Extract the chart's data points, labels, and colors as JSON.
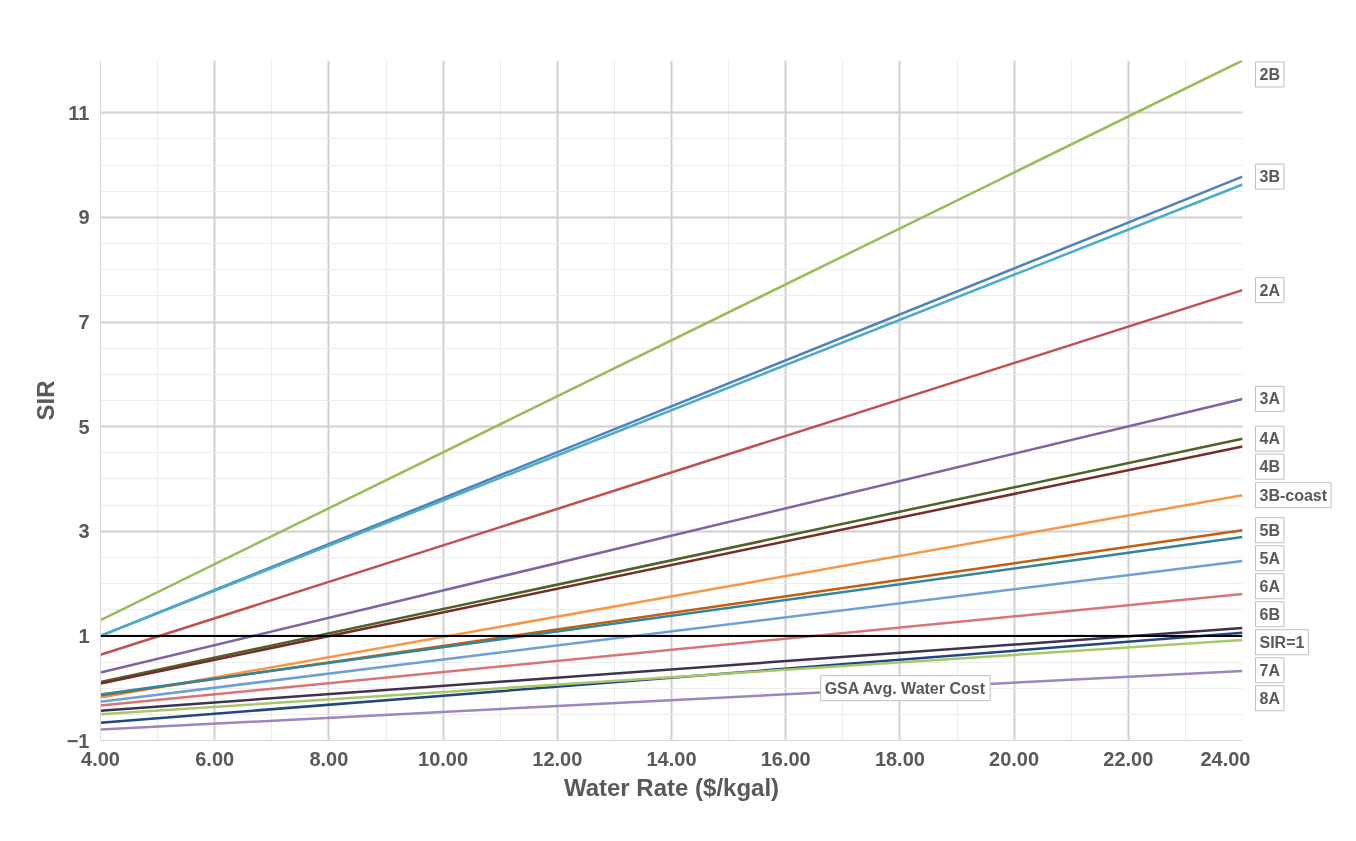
{
  "chart_data": {
    "type": "line",
    "xlabel": "Water Rate ($/kgal)",
    "ylabel": "SIR",
    "x": [
      4,
      24
    ],
    "series": [
      {
        "name": "2B",
        "color": "#9bbb59",
        "values": [
          1.3,
          12.0
        ]
      },
      {
        "name": "3B",
        "color": "#4f81bd",
        "values": [
          1.0,
          9.78
        ]
      },
      {
        "color": "#4bacc6",
        "values": [
          1.0,
          9.63
        ]
      },
      {
        "name": "2A",
        "color": "#c0504d",
        "values": [
          0.64,
          7.61
        ]
      },
      {
        "name": "3A",
        "color": "#8064a2",
        "values": [
          0.3,
          5.53
        ]
      },
      {
        "name": "4A",
        "color": "#4f6228",
        "values": [
          0.12,
          4.77
        ]
      },
      {
        "name": "4B",
        "color": "#772c2a",
        "values": [
          0.09,
          4.62
        ]
      },
      {
        "name": "3B-coast",
        "color": "#f79646",
        "values": [
          -0.18,
          3.69
        ]
      },
      {
        "name": "5B",
        "color": "#c0600f",
        "values": [
          -0.14,
          3.02
        ]
      },
      {
        "name": "5A",
        "color": "#31859c",
        "values": [
          -0.12,
          2.89
        ]
      },
      {
        "name": "6A",
        "color": "#6f9fd8",
        "values": [
          -0.26,
          2.43
        ]
      },
      {
        "name": "6B",
        "color": "#d87474",
        "values": [
          -0.33,
          1.8
        ]
      },
      {
        "color": "#3f3151",
        "values": [
          -0.43,
          1.15
        ]
      },
      {
        "color": "#1f497d",
        "values": [
          -0.66,
          1.06
        ]
      },
      {
        "name": "7A",
        "color": "#a6c86a",
        "values": [
          -0.5,
          0.92
        ]
      },
      {
        "name": "8A",
        "color": "#9c85c0",
        "values": [
          -0.79,
          0.33
        ]
      }
    ],
    "ref_lines": [
      {
        "axis": "y",
        "value": 1,
        "label": "SIR=1",
        "color": "#000000"
      }
    ],
    "annotations": [
      {
        "text": "GSA Avg. Water Cost",
        "x": 16.7,
        "y": 0
      }
    ],
    "xlim": [
      4,
      24
    ],
    "ylim": [
      -1,
      12
    ],
    "xticks": [
      {
        "value": 4,
        "label": "4.00"
      },
      {
        "value": 6,
        "label": "6.00"
      },
      {
        "value": 8,
        "label": "8.00"
      },
      {
        "value": 10,
        "label": "10.00"
      },
      {
        "value": 12,
        "label": "12.00"
      },
      {
        "value": 14,
        "label": "14.00"
      },
      {
        "value": 16,
        "label": "16.00"
      },
      {
        "value": 18,
        "label": "18.00"
      },
      {
        "value": 20,
        "label": "20.00"
      },
      {
        "value": 22,
        "label": "22.00"
      },
      {
        "value": 24,
        "label": "24.00"
      }
    ],
    "yticks": [
      -1,
      1,
      3,
      5,
      7,
      9,
      11
    ],
    "grid": true,
    "marker": "none",
    "line_style": "solid"
  }
}
